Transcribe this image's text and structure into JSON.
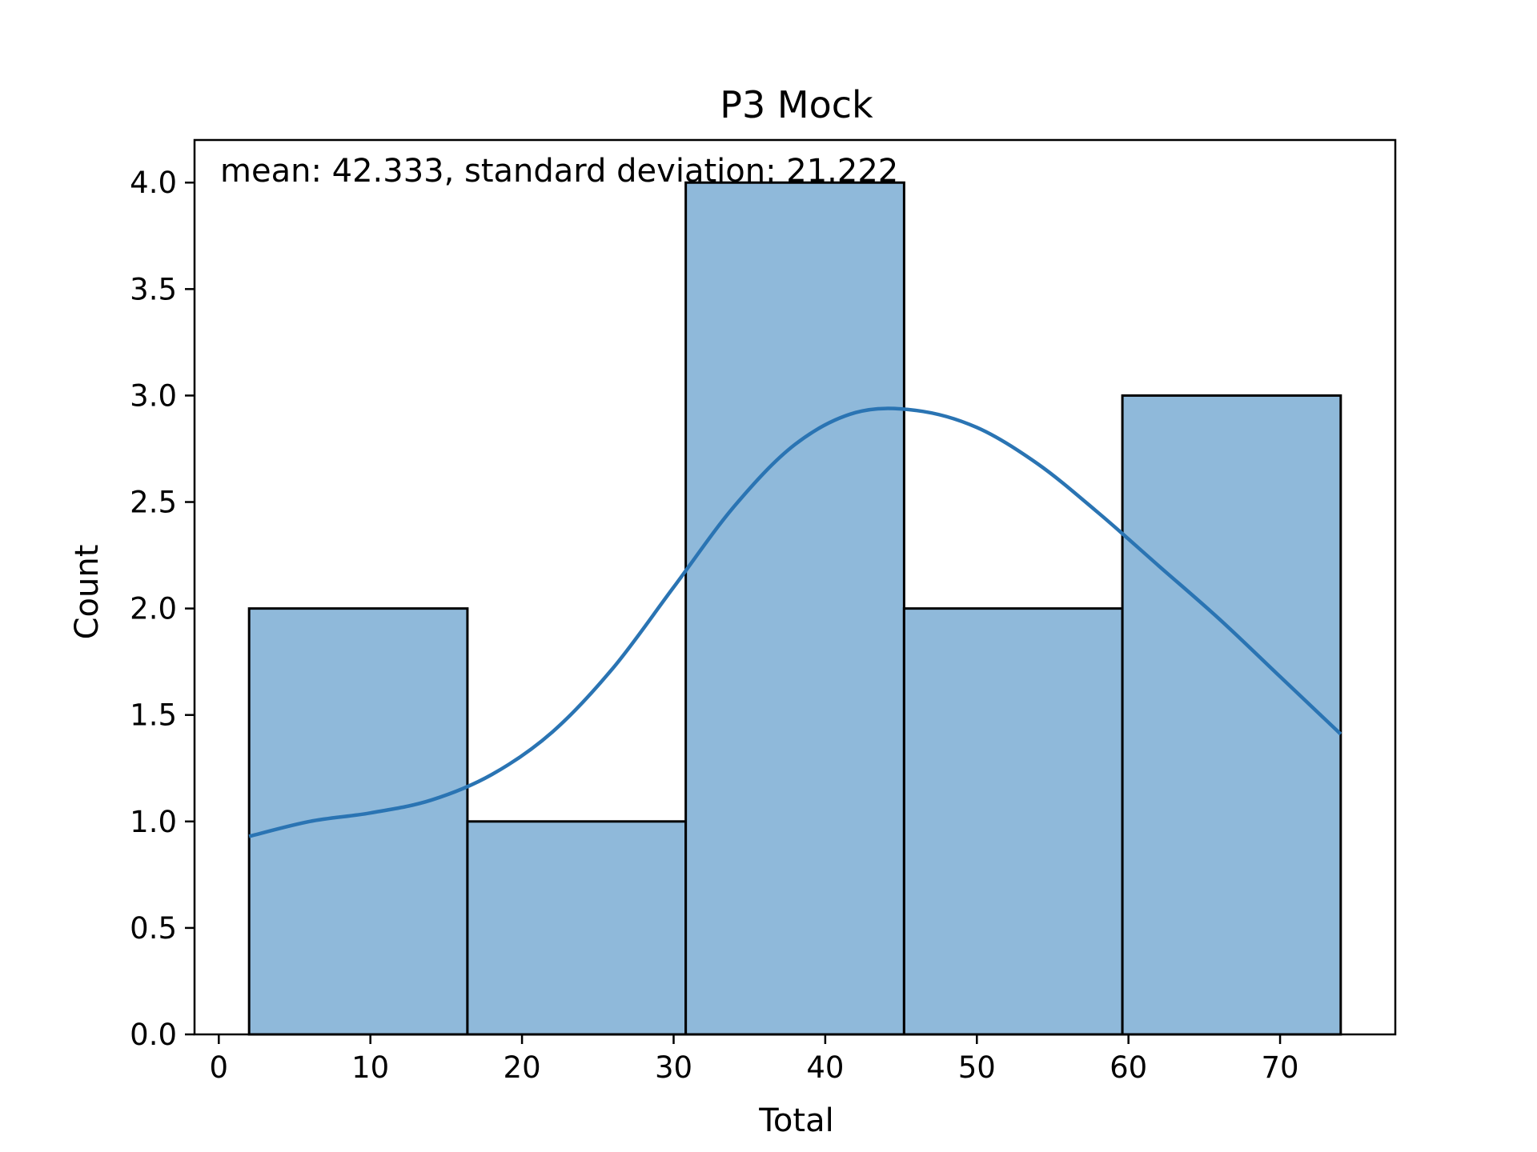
{
  "chart_data": {
    "type": "bar",
    "title": "P3 Mock",
    "xlabel": "Total",
    "ylabel": "Count",
    "annotation": "mean: 42.333, standard deviation: 21.222",
    "bins": [
      {
        "x0": 2.0,
        "x1": 16.4,
        "count": 2
      },
      {
        "x0": 16.4,
        "x1": 30.8,
        "count": 1
      },
      {
        "x0": 30.8,
        "x1": 45.2,
        "count": 4
      },
      {
        "x0": 45.2,
        "x1": 59.6,
        "count": 2
      },
      {
        "x0": 59.6,
        "x1": 74.0,
        "count": 3
      }
    ],
    "kde": {
      "x": [
        2,
        6,
        10,
        14,
        18,
        22,
        26,
        30,
        34,
        38,
        42,
        46,
        50,
        54,
        58,
        62,
        66,
        70,
        74
      ],
      "y": [
        0.93,
        1.0,
        1.04,
        1.1,
        1.22,
        1.42,
        1.72,
        2.1,
        2.48,
        2.77,
        2.92,
        2.93,
        2.85,
        2.68,
        2.45,
        2.2,
        1.95,
        1.68,
        1.41
      ]
    },
    "xticks": [
      0,
      10,
      20,
      30,
      40,
      50,
      60,
      70
    ],
    "yticks": [
      0.0,
      0.5,
      1.0,
      1.5,
      2.0,
      2.5,
      3.0,
      3.5,
      4.0
    ],
    "xlim": [
      -1.6,
      77.6
    ],
    "ylim": [
      0,
      4.2
    ],
    "colors": {
      "bar_fill": "#8fb9da",
      "bar_edge": "#000000",
      "kde_line": "#2a74b3"
    }
  }
}
